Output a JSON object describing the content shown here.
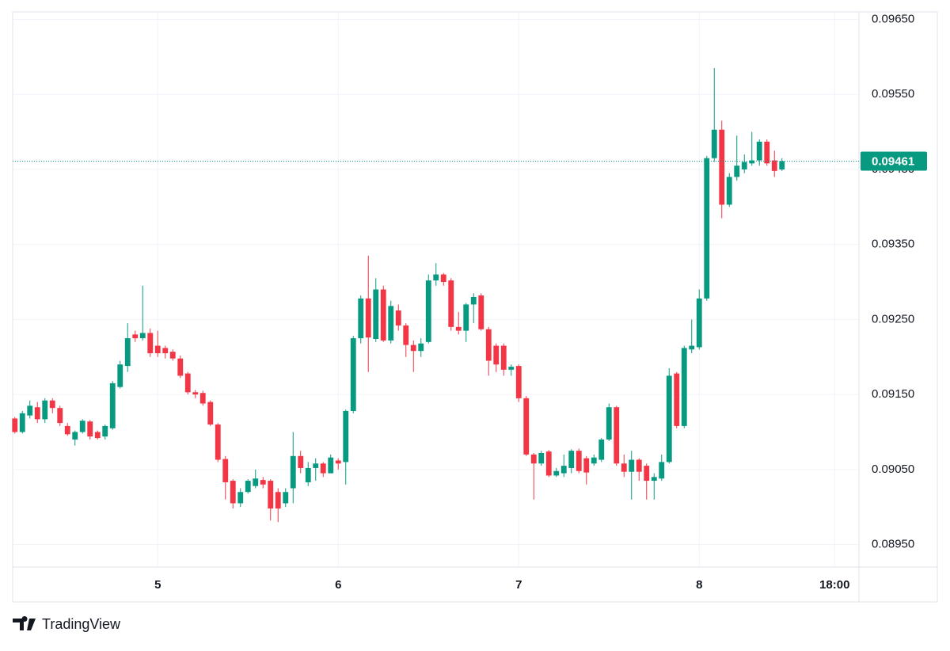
{
  "chart_data": {
    "type": "candlestick",
    "categories": [
      null,
      null,
      null,
      null,
      null,
      null,
      null,
      null,
      null,
      null,
      null,
      null,
      null,
      null,
      null,
      null,
      null,
      null,
      null,
      "5",
      null,
      null,
      null,
      null,
      null,
      null,
      null,
      null,
      null,
      null,
      null,
      null,
      null,
      null,
      null,
      null,
      null,
      null,
      null,
      null,
      null,
      null,
      null,
      "6",
      null,
      null,
      null,
      null,
      null,
      null,
      null,
      null,
      null,
      null,
      null,
      null,
      null,
      null,
      null,
      null,
      null,
      null,
      null,
      null,
      null,
      null,
      null,
      "7",
      null,
      null,
      null,
      null,
      null,
      null,
      null,
      null,
      null,
      null,
      null,
      null,
      null,
      null,
      null,
      null,
      null,
      null,
      null,
      null,
      null,
      null,
      null,
      "8",
      null,
      null,
      null,
      null,
      null,
      null,
      null,
      null,
      null,
      null,
      null,
      null,
      null,
      null,
      null,
      null,
      null,
      "18:00",
      null,
      null
    ],
    "open": [
      0.09118,
      0.091,
      0.09122,
      0.09133,
      0.09117,
      0.09142,
      0.09132,
      0.09108,
      0.0909,
      0.091,
      0.09114,
      0.091,
      0.09094,
      0.09105,
      0.0916,
      0.09188,
      0.0923,
      0.09225,
      0.09232,
      0.09215,
      0.09212,
      0.09207,
      0.09198,
      0.09178,
      0.09153,
      0.09152,
      0.0914,
      0.0911,
      0.09064,
      0.09035,
      0.09005,
      0.0902,
      0.09028,
      0.09036,
      0.09035,
      0.0902,
      0.09005,
      0.09025,
      0.09068,
      0.09033,
      0.09052,
      0.09058,
      0.09045,
      0.09062,
      0.0906,
      0.09128,
      0.09225,
      0.09278,
      0.09224,
      0.0929,
      0.09222,
      0.09262,
      0.09242,
      0.09216,
      0.09208,
      0.0922,
      0.09302,
      0.0931,
      0.09302,
      0.0924,
      0.09235,
      0.0927,
      0.09282,
      0.09237,
      0.09215,
      0.09215,
      0.09183,
      0.09188,
      0.09145,
      0.0907,
      0.09058,
      0.09074,
      0.09042,
      0.09045,
      0.09052,
      0.09075,
      0.09065,
      0.09058,
      0.09063,
      0.0909,
      0.09133,
      0.09058,
      0.09047,
      0.09063,
      0.09055,
      0.09035,
      0.09038,
      0.0906,
      0.09178,
      0.09108,
      0.0921,
      0.09213,
      0.09278,
      0.09465,
      0.09503,
      0.09403,
      0.0944,
      0.0945,
      0.09458,
      0.09462,
      0.09487,
      0.09462,
      0.0945,
      null,
      null,
      null,
      null,
      null,
      null,
      null,
      null,
      null
    ],
    "high": [
      0.0912,
      0.09128,
      0.09142,
      0.0914,
      0.09145,
      0.09145,
      0.09135,
      0.09112,
      0.09102,
      0.09117,
      0.09116,
      0.09102,
      0.0911,
      0.09168,
      0.09195,
      0.09245,
      0.09235,
      0.09295,
      0.09238,
      0.09235,
      0.09215,
      0.0921,
      0.09202,
      0.0918,
      0.09156,
      0.09155,
      0.09142,
      0.09112,
      0.09068,
      0.09037,
      0.09025,
      0.09037,
      0.0905,
      0.0904,
      0.09037,
      0.09025,
      0.09025,
      0.091,
      0.09075,
      0.0906,
      0.09065,
      0.0906,
      0.0907,
      0.09065,
      0.0913,
      0.09228,
      0.09282,
      0.09335,
      0.09305,
      0.09295,
      0.09275,
      0.0927,
      0.09245,
      0.09222,
      0.09225,
      0.0931,
      0.09325,
      0.09312,
      0.09305,
      0.0926,
      0.09272,
      0.09285,
      0.09285,
      0.0924,
      0.09218,
      0.09218,
      0.0919,
      0.0919,
      0.09148,
      0.09072,
      0.09075,
      0.09076,
      0.09052,
      0.0907,
      0.09077,
      0.09078,
      0.09068,
      0.0907,
      0.09092,
      0.09138,
      0.09135,
      0.0907,
      0.09075,
      0.09065,
      0.09058,
      0.09045,
      0.0907,
      0.09185,
      0.0918,
      0.09215,
      0.0925,
      0.0929,
      0.09468,
      0.09585,
      0.09515,
      0.09445,
      0.09495,
      0.0947,
      0.095,
      0.0949,
      0.0949,
      0.09475,
      0.09465,
      null,
      null,
      null,
      null,
      null,
      null,
      null,
      null,
      null
    ],
    "low": [
      0.09098,
      0.09098,
      0.09118,
      0.09112,
      0.09112,
      0.09125,
      0.09108,
      0.09095,
      0.09082,
      0.09098,
      0.0909,
      0.0909,
      0.0909,
      0.09103,
      0.09158,
      0.0918,
      0.0922,
      0.09222,
      0.092,
      0.092,
      0.09198,
      0.09195,
      0.09172,
      0.0915,
      0.09145,
      0.09135,
      0.09108,
      0.0906,
      0.0901,
      0.08998,
      0.09,
      0.09018,
      0.09025,
      0.09025,
      0.08982,
      0.0898,
      0.09,
      0.09005,
      0.09045,
      0.09028,
      0.09035,
      0.0904,
      0.09045,
      0.0905,
      0.0903,
      0.09125,
      0.09218,
      0.0918,
      0.0922,
      0.0922,
      0.09218,
      0.09235,
      0.092,
      0.0918,
      0.092,
      0.09218,
      0.09295,
      0.09295,
      0.09235,
      0.0923,
      0.0922,
      0.09245,
      0.09235,
      0.09175,
      0.0918,
      0.09175,
      0.09175,
      0.0914,
      0.09068,
      0.0901,
      0.09055,
      0.0904,
      0.0904,
      0.0904,
      0.09045,
      0.09045,
      0.0903,
      0.09055,
      0.0906,
      0.09088,
      0.09055,
      0.0904,
      0.0901,
      0.09035,
      0.0901,
      0.0901,
      0.09035,
      0.09058,
      0.09105,
      0.09105,
      0.09205,
      0.0921,
      0.09275,
      0.0946,
      0.09385,
      0.094,
      0.09435,
      0.09445,
      0.09455,
      0.09455,
      0.09455,
      0.0944,
      0.09448,
      null,
      null,
      null,
      null,
      null,
      null,
      null,
      null,
      null
    ],
    "close": [
      0.091,
      0.09125,
      0.09135,
      0.09117,
      0.09142,
      0.09132,
      0.09112,
      0.09097,
      0.091,
      0.09115,
      0.09094,
      0.09092,
      0.09108,
      0.09165,
      0.0919,
      0.09225,
      0.09225,
      0.09232,
      0.09205,
      0.09205,
      0.09205,
      0.09198,
      0.09175,
      0.09153,
      0.0915,
      0.09138,
      0.0911,
      0.09063,
      0.09033,
      0.09005,
      0.0902,
      0.09035,
      0.09038,
      0.0903,
      0.08998,
      0.08998,
      0.0902,
      0.09068,
      0.09052,
      0.09052,
      0.09058,
      0.09045,
      0.09066,
      0.09058,
      0.09128,
      0.09225,
      0.09278,
      0.09226,
      0.0929,
      0.09222,
      0.09268,
      0.09242,
      0.09216,
      0.09208,
      0.09218,
      0.09302,
      0.0931,
      0.093,
      0.0924,
      0.09235,
      0.0927,
      0.0928,
      0.09237,
      0.09195,
      0.0919,
      0.09183,
      0.09187,
      0.09145,
      0.0907,
      0.09058,
      0.09072,
      0.09042,
      0.09048,
      0.09055,
      0.09075,
      0.09048,
      0.09046,
      0.09066,
      0.0909,
      0.09133,
      0.09058,
      0.09047,
      0.09063,
      0.09047,
      0.09035,
      0.0904,
      0.0906,
      0.09175,
      0.09108,
      0.09212,
      0.09215,
      0.09278,
      0.09465,
      0.09503,
      0.09403,
      0.0944,
      0.09455,
      0.0946,
      0.09462,
      0.09487,
      0.09458,
      0.09448,
      0.09461,
      null,
      null,
      null,
      null,
      null,
      null,
      null,
      null,
      null
    ],
    "up_color": "#089981",
    "down_color": "#f23645",
    "ylim": [
      0.0892,
      0.0966
    ],
    "yticks": [
      {
        "value": 0.0895,
        "label": "0.08950"
      },
      {
        "value": 0.0905,
        "label": "0.09050"
      },
      {
        "value": 0.0915,
        "label": "0.09150"
      },
      {
        "value": 0.0925,
        "label": "0.09250"
      },
      {
        "value": 0.0935,
        "label": "0.09350"
      },
      {
        "value": 0.0945,
        "label": "0.09450"
      },
      {
        "value": 0.0955,
        "label": "0.09550"
      },
      {
        "value": 0.0965,
        "label": "0.09650"
      }
    ],
    "last_price": 0.09461,
    "grid": true
  },
  "footer": {
    "brand": "TradingView"
  }
}
